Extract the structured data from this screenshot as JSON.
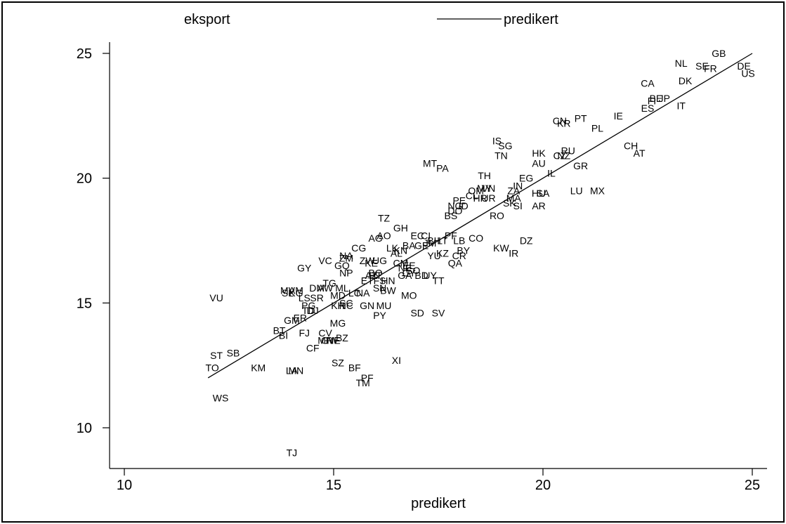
{
  "chart_data": {
    "type": "scatter",
    "xlabel": "predikert",
    "ylabel": "",
    "xlim": [
      9.7,
      25.5
    ],
    "ylim": [
      8.5,
      25.5
    ],
    "x_ticks": [
      "10",
      "15",
      "20",
      "25"
    ],
    "y_ticks": [
      "10",
      "15",
      "20",
      "25"
    ],
    "legend": {
      "position": "top",
      "entries": [
        "eksport",
        "predikert"
      ]
    },
    "grid": false,
    "series": [
      {
        "name": "eksport",
        "kind": "labels",
        "points": [
          {
            "label": "GB",
            "x": 24.2,
            "y": 25.0
          },
          {
            "label": "NL",
            "x": 23.3,
            "y": 24.6
          },
          {
            "label": "SE",
            "x": 23.8,
            "y": 24.5
          },
          {
            "label": "FR",
            "x": 24.0,
            "y": 24.4
          },
          {
            "label": "DE",
            "x": 24.8,
            "y": 24.5
          },
          {
            "label": "US",
            "x": 24.9,
            "y": 24.2
          },
          {
            "label": "DK",
            "x": 23.4,
            "y": 23.9
          },
          {
            "label": "CA",
            "x": 22.5,
            "y": 23.8
          },
          {
            "label": "FI",
            "x": 22.6,
            "y": 23.1
          },
          {
            "label": "BE",
            "x": 22.7,
            "y": 23.2
          },
          {
            "label": "JP",
            "x": 22.9,
            "y": 23.2
          },
          {
            "label": "IT",
            "x": 23.3,
            "y": 22.9
          },
          {
            "label": "ES",
            "x": 22.5,
            "y": 22.8
          },
          {
            "label": "IE",
            "x": 21.8,
            "y": 22.5
          },
          {
            "label": "CN",
            "x": 20.4,
            "y": 22.3
          },
          {
            "label": "KR",
            "x": 20.5,
            "y": 22.2
          },
          {
            "label": "PT",
            "x": 20.9,
            "y": 22.4
          },
          {
            "label": "PL",
            "x": 21.3,
            "y": 22.0
          },
          {
            "label": "IS",
            "x": 18.9,
            "y": 21.5
          },
          {
            "label": "SG",
            "x": 19.1,
            "y": 21.3
          },
          {
            "label": "TN",
            "x": 19.0,
            "y": 20.9
          },
          {
            "label": "HK",
            "x": 19.9,
            "y": 21.0
          },
          {
            "label": "RU",
            "x": 20.6,
            "y": 21.1
          },
          {
            "label": "NZ",
            "x": 20.5,
            "y": 20.9
          },
          {
            "label": "CZ",
            "x": 20.4,
            "y": 20.9
          },
          {
            "label": "AU",
            "x": 19.9,
            "y": 20.6
          },
          {
            "label": "CH",
            "x": 22.1,
            "y": 21.3
          },
          {
            "label": "AT",
            "x": 22.3,
            "y": 21.0
          },
          {
            "label": "GR",
            "x": 20.9,
            "y": 20.5
          },
          {
            "label": "MT",
            "x": 17.3,
            "y": 20.6
          },
          {
            "label": "PA",
            "x": 17.6,
            "y": 20.4
          },
          {
            "label": "IL",
            "x": 20.2,
            "y": 20.2
          },
          {
            "label": "TH",
            "x": 18.6,
            "y": 20.1
          },
          {
            "label": "EG",
            "x": 19.6,
            "y": 20.0
          },
          {
            "label": "IN",
            "x": 19.4,
            "y": 19.7
          },
          {
            "label": "ZA",
            "x": 19.3,
            "y": 19.5
          },
          {
            "label": "HU",
            "x": 19.9,
            "y": 19.4
          },
          {
            "label": "SA",
            "x": 20.0,
            "y": 19.4
          },
          {
            "label": "LU",
            "x": 20.8,
            "y": 19.5
          },
          {
            "label": "MX",
            "x": 21.3,
            "y": 19.5
          },
          {
            "label": "AR",
            "x": 19.9,
            "y": 18.9
          },
          {
            "label": "MA",
            "x": 19.3,
            "y": 19.2
          },
          {
            "label": "SK",
            "x": 19.2,
            "y": 19.0
          },
          {
            "label": "SI",
            "x": 19.4,
            "y": 18.9
          },
          {
            "label": "MY",
            "x": 18.6,
            "y": 19.6
          },
          {
            "label": "VN",
            "x": 18.7,
            "y": 19.6
          },
          {
            "label": "CL",
            "x": 18.3,
            "y": 19.3
          },
          {
            "label": "HR",
            "x": 18.5,
            "y": 19.2
          },
          {
            "label": "OM",
            "x": 18.4,
            "y": 19.5
          },
          {
            "label": "UR",
            "x": 18.7,
            "y": 19.2
          },
          {
            "label": "NG",
            "x": 17.9,
            "y": 18.9
          },
          {
            "label": "PE",
            "x": 18.0,
            "y": 19.1
          },
          {
            "label": "ID",
            "x": 18.1,
            "y": 18.9
          },
          {
            "label": "RO",
            "x": 18.9,
            "y": 18.5
          },
          {
            "label": "BS",
            "x": 17.8,
            "y": 18.5
          },
          {
            "label": "DO",
            "x": 17.9,
            "y": 18.7
          },
          {
            "label": "TZ",
            "x": 16.2,
            "y": 18.4
          },
          {
            "label": "GH",
            "x": 16.6,
            "y": 18.0
          },
          {
            "label": "AO",
            "x": 16.2,
            "y": 17.7
          },
          {
            "label": "AG",
            "x": 16.0,
            "y": 17.6
          },
          {
            "label": "EC",
            "x": 17.0,
            "y": 17.7
          },
          {
            "label": "CI",
            "x": 17.2,
            "y": 17.7
          },
          {
            "label": "LT",
            "x": 17.6,
            "y": 17.5
          },
          {
            "label": "LB",
            "x": 18.0,
            "y": 17.5
          },
          {
            "label": "CO",
            "x": 18.4,
            "y": 17.6
          },
          {
            "label": "DZ",
            "x": 19.6,
            "y": 17.5
          },
          {
            "label": "JM",
            "x": 17.3,
            "y": 17.4
          },
          {
            "label": "BH",
            "x": 17.4,
            "y": 17.5
          },
          {
            "label": "PF",
            "x": 17.8,
            "y": 17.7
          },
          {
            "label": "BA",
            "x": 16.8,
            "y": 17.3
          },
          {
            "label": "LK",
            "x": 16.4,
            "y": 17.2
          },
          {
            "label": "AL",
            "x": 16.5,
            "y": 17.0
          },
          {
            "label": "KN",
            "x": 16.6,
            "y": 17.1
          },
          {
            "label": "GE",
            "x": 17.1,
            "y": 17.3
          },
          {
            "label": "BY",
            "x": 18.1,
            "y": 17.1
          },
          {
            "label": "KW",
            "x": 19.0,
            "y": 17.2
          },
          {
            "label": "IR",
            "x": 19.3,
            "y": 17.0
          },
          {
            "label": "CR",
            "x": 18.0,
            "y": 16.9
          },
          {
            "label": "QA",
            "x": 17.9,
            "y": 16.6
          },
          {
            "label": "KZ",
            "x": 17.6,
            "y": 17.0
          },
          {
            "label": "YU",
            "x": 17.4,
            "y": 16.9
          },
          {
            "label": "CG",
            "x": 15.6,
            "y": 17.2
          },
          {
            "label": "NA",
            "x": 15.3,
            "y": 16.9
          },
          {
            "label": "ZM",
            "x": 15.3,
            "y": 16.8
          },
          {
            "label": "VC",
            "x": 14.8,
            "y": 16.7
          },
          {
            "label": "GY",
            "x": 14.3,
            "y": 16.4
          },
          {
            "label": "ZW",
            "x": 15.8,
            "y": 16.7
          },
          {
            "label": "UG",
            "x": 16.1,
            "y": 16.7
          },
          {
            "label": "KE",
            "x": 15.9,
            "y": 16.6
          },
          {
            "label": "CM",
            "x": 16.6,
            "y": 16.6
          },
          {
            "label": "EE",
            "x": 16.8,
            "y": 16.5
          },
          {
            "label": "NE",
            "x": 16.7,
            "y": 16.4
          },
          {
            "label": "BO",
            "x": 16.0,
            "y": 16.2
          },
          {
            "label": "AZ",
            "x": 15.9,
            "y": 16.1
          },
          {
            "label": "HT",
            "x": 16.0,
            "y": 16.1
          },
          {
            "label": "GQ",
            "x": 15.2,
            "y": 16.5
          },
          {
            "label": "NP",
            "x": 15.3,
            "y": 16.2
          },
          {
            "label": "CY",
            "x": 16.8,
            "y": 16.2
          },
          {
            "label": "SO",
            "x": 16.9,
            "y": 16.3
          },
          {
            "label": "BD",
            "x": 17.1,
            "y": 16.1
          },
          {
            "label": "UY",
            "x": 17.3,
            "y": 16.1
          },
          {
            "label": "TT",
            "x": 17.5,
            "y": 15.9
          },
          {
            "label": "GA",
            "x": 16.7,
            "y": 16.1
          },
          {
            "label": "ET",
            "x": 15.8,
            "y": 15.9
          },
          {
            "label": "FS",
            "x": 16.1,
            "y": 15.9
          },
          {
            "label": "HN",
            "x": 16.3,
            "y": 15.9
          },
          {
            "label": "SN",
            "x": 16.1,
            "y": 15.6
          },
          {
            "label": "BW",
            "x": 16.3,
            "y": 15.5
          },
          {
            "label": "MO",
            "x": 16.8,
            "y": 15.3
          },
          {
            "label": "TG",
            "x": 14.9,
            "y": 15.8
          },
          {
            "label": "ML",
            "x": 15.2,
            "y": 15.6
          },
          {
            "label": "DM",
            "x": 14.6,
            "y": 15.6
          },
          {
            "label": "AW",
            "x": 14.8,
            "y": 15.6
          },
          {
            "label": "AM",
            "x": 14.1,
            "y": 15.5
          },
          {
            "label": "MD",
            "x": 15.1,
            "y": 15.3
          },
          {
            "label": "LC",
            "x": 15.5,
            "y": 15.4
          },
          {
            "label": "NA",
            "x": 15.7,
            "y": 15.4
          },
          {
            "label": "SL",
            "x": 13.9,
            "y": 15.4
          },
          {
            "label": "MV",
            "x": 13.9,
            "y": 15.5
          },
          {
            "label": "KG",
            "x": 14.1,
            "y": 15.4
          },
          {
            "label": "SR",
            "x": 14.6,
            "y": 15.2
          },
          {
            "label": "LS",
            "x": 14.3,
            "y": 15.2
          },
          {
            "label": "KH",
            "x": 15.1,
            "y": 14.9
          },
          {
            "label": "NC",
            "x": 15.3,
            "y": 14.9
          },
          {
            "label": "SC",
            "x": 15.3,
            "y": 15.0
          },
          {
            "label": "GN",
            "x": 15.8,
            "y": 14.9
          },
          {
            "label": "MU",
            "x": 16.2,
            "y": 14.9
          },
          {
            "label": "PG",
            "x": 14.4,
            "y": 14.9
          },
          {
            "label": "TD",
            "x": 14.4,
            "y": 14.7
          },
          {
            "label": "DJ",
            "x": 14.5,
            "y": 14.7
          },
          {
            "label": "SD",
            "x": 17.0,
            "y": 14.6
          },
          {
            "label": "SV",
            "x": 17.5,
            "y": 14.6
          },
          {
            "label": "PY",
            "x": 16.1,
            "y": 14.5
          },
          {
            "label": "VU",
            "x": 12.2,
            "y": 15.2
          },
          {
            "label": "ER",
            "x": 14.2,
            "y": 14.4
          },
          {
            "label": "GM",
            "x": 14.0,
            "y": 14.3
          },
          {
            "label": "MG",
            "x": 15.1,
            "y": 14.2
          },
          {
            "label": "BT",
            "x": 13.7,
            "y": 13.9
          },
          {
            "label": "BI",
            "x": 13.8,
            "y": 13.7
          },
          {
            "label": "FJ",
            "x": 14.3,
            "y": 13.8
          },
          {
            "label": "CV",
            "x": 14.8,
            "y": 13.8
          },
          {
            "label": "NE",
            "x": 15.0,
            "y": 13.5
          },
          {
            "label": "BZ",
            "x": 15.2,
            "y": 13.6
          },
          {
            "label": "MR",
            "x": 14.8,
            "y": 13.5
          },
          {
            "label": "GW",
            "x": 14.9,
            "y": 13.5
          },
          {
            "label": "CF",
            "x": 14.5,
            "y": 13.2
          },
          {
            "label": "ST",
            "x": 12.2,
            "y": 12.9
          },
          {
            "label": "SB",
            "x": 12.6,
            "y": 13.0
          },
          {
            "label": "TO",
            "x": 12.1,
            "y": 12.4
          },
          {
            "label": "KM",
            "x": 13.2,
            "y": 12.4
          },
          {
            "label": "LA",
            "x": 14.0,
            "y": 12.3
          },
          {
            "label": "MN",
            "x": 14.1,
            "y": 12.3
          },
          {
            "label": "SZ",
            "x": 15.1,
            "y": 12.6
          },
          {
            "label": "BF",
            "x": 15.5,
            "y": 12.4
          },
          {
            "label": "XI",
            "x": 16.5,
            "y": 12.7
          },
          {
            "label": "PF",
            "x": 15.8,
            "y": 12.0
          },
          {
            "label": "TM",
            "x": 15.7,
            "y": 11.8
          },
          {
            "label": "WS",
            "x": 12.3,
            "y": 11.2
          },
          {
            "label": "TJ",
            "x": 14.0,
            "y": 9.0
          }
        ]
      },
      {
        "name": "predikert",
        "kind": "line",
        "x": [
          12.0,
          25.0
        ],
        "y": [
          12.0,
          25.0
        ]
      }
    ]
  }
}
